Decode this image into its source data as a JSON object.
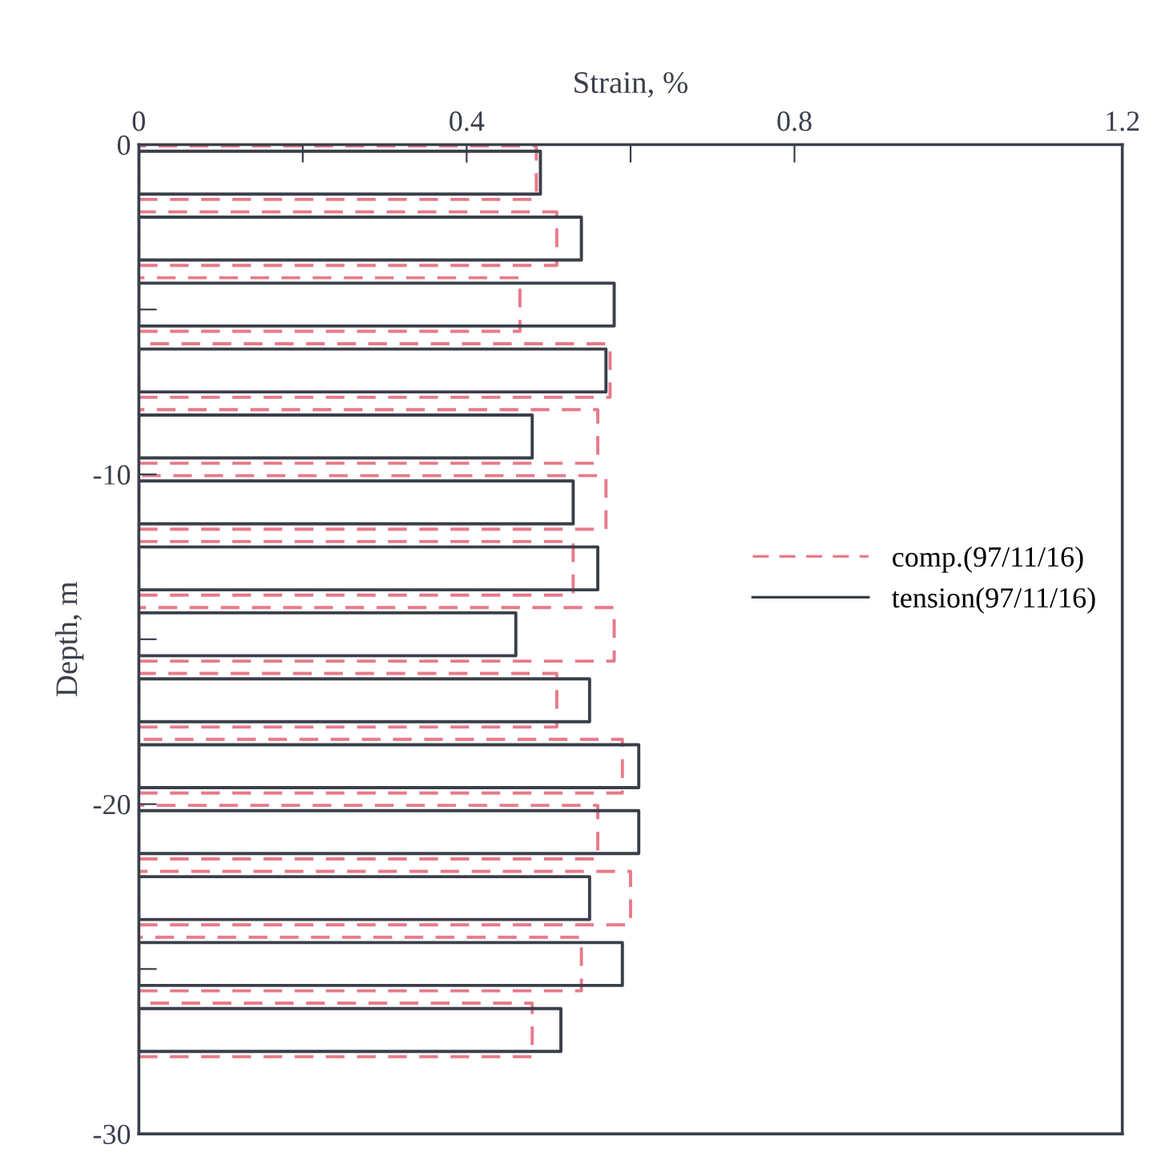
{
  "chart_data": {
    "type": "bar",
    "orientation": "horizontal",
    "xlabel": "Strain, %",
    "ylabel": "Depth, m",
    "x": [
      -0.85,
      -2.85,
      -4.85,
      -6.85,
      -8.85,
      -10.85,
      -12.85,
      -14.85,
      -16.85,
      -18.85,
      -20.85,
      -22.85,
      -24.85,
      -26.85
    ],
    "series": [
      {
        "name": "comp.(97/11/16)",
        "color": "#e87a8a",
        "line_style": "dashed",
        "values": [
          0.485,
          0.51,
          0.465,
          0.575,
          0.56,
          0.57,
          0.53,
          0.58,
          0.51,
          0.59,
          0.56,
          0.6,
          0.54,
          0.48
        ]
      },
      {
        "name": "tension(97/11/16)",
        "color": "#3a3f4a",
        "line_style": "solid",
        "values": [
          0.49,
          0.54,
          0.58,
          0.57,
          0.48,
          0.53,
          0.56,
          0.46,
          0.55,
          0.61,
          0.61,
          0.55,
          0.59,
          0.515
        ]
      }
    ],
    "xlim": [
      0,
      1.2
    ],
    "xticks": [
      0,
      {
        "value": 0.2,
        "label": null
      },
      0.4,
      {
        "value": 0.6,
        "label": null
      },
      0.8,
      1.2
    ],
    "ylim": [
      -30,
      0
    ],
    "yticks": [
      0,
      {
        "value": -5,
        "label": null
      },
      -10,
      {
        "value": -15,
        "label": null
      },
      -20,
      {
        "value": -25,
        "label": null
      },
      -30
    ],
    "legend": "right",
    "grid": false
  }
}
